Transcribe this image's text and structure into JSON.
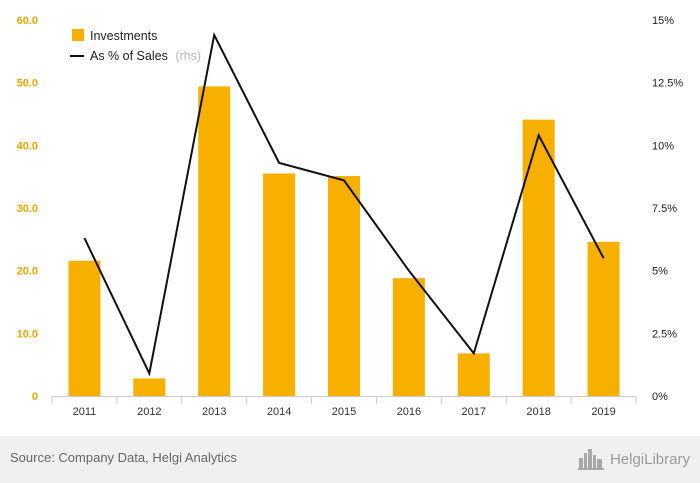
{
  "colors": {
    "bar": "#f7b000",
    "line": "#111111",
    "axis": "#cccccc",
    "footer_bg": "#f0f0f0"
  },
  "legend": {
    "bar_label": "Investments",
    "line_label": "As % of Sales",
    "line_note": "(rhs)",
    "placement": "top-left"
  },
  "footer": {
    "source": "Source: Company Data, Helgi Analytics",
    "logo_text": "HelgiLibrary",
    "logo_icon": "city-skyline-icon"
  },
  "chart_data": {
    "type": "bar",
    "categories": [
      "2011",
      "2012",
      "2013",
      "2014",
      "2015",
      "2016",
      "2017",
      "2018",
      "2019"
    ],
    "series": [
      {
        "name": "Investments",
        "type": "bar",
        "axis": "left",
        "values": [
          21.6,
          2.8,
          49.4,
          35.5,
          35.1,
          18.8,
          6.8,
          44.1,
          24.6
        ]
      },
      {
        "name": "As % of Sales",
        "type": "line",
        "axis": "right",
        "values": [
          6.3,
          0.9,
          14.4,
          9.3,
          8.6,
          5.0,
          1.7,
          10.4,
          5.5
        ]
      }
    ],
    "y_left": {
      "min": 0,
      "max": 60,
      "ticks": [
        "0",
        "10.0",
        "20.0",
        "30.0",
        "40.0",
        "50.0",
        "60.0"
      ]
    },
    "y_right": {
      "min": 0,
      "max": 15,
      "ticks": [
        "0%",
        "2.5%",
        "5%",
        "7.5%",
        "10%",
        "12.5%",
        "15%"
      ]
    },
    "grid": false
  }
}
